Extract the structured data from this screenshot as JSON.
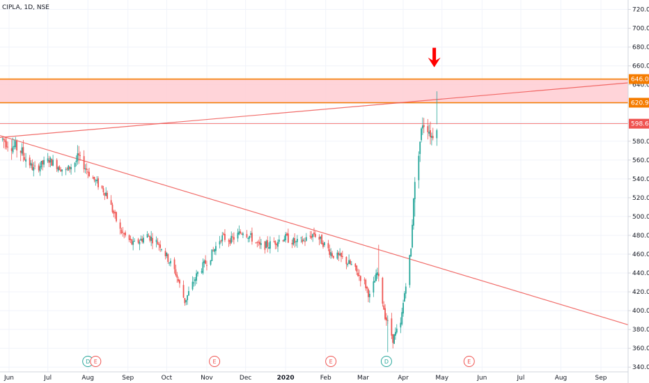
{
  "chart_data": {
    "type": "candlestick",
    "title": "CIPLA, 1D, NSE",
    "y_axis": {
      "range": [
        335,
        730
      ],
      "ticks": [
        340,
        360,
        380,
        400,
        420,
        440,
        460,
        480,
        500,
        520,
        540,
        560,
        580,
        600,
        620,
        640,
        660,
        680,
        700,
        720
      ],
      "tick_labels": [
        "340.00",
        "360.00",
        "380.00",
        "400.00",
        "420.00",
        "440.00",
        "460.00",
        "480.00",
        "500.00",
        "520.00",
        "540.00",
        "560.00",
        "580.00",
        "600.00",
        "620.00",
        "640.00",
        "660.00",
        "680.00",
        "700.00",
        "720.00"
      ]
    },
    "x_axis": {
      "labels": [
        "Jun",
        "Jul",
        "Aug",
        "Sep",
        "Oct",
        "Nov",
        "Dec",
        "2020",
        "Feb",
        "Mar",
        "Apr",
        "May",
        "Jun",
        "Jul",
        "Aug",
        "Sep"
      ],
      "label_dates": [
        "2019-06-01",
        "2019-07-01",
        "2019-08-01",
        "2019-09-01",
        "2019-10-01",
        "2019-11-01",
        "2019-12-01",
        "2020-01-01",
        "2020-02-01",
        "2020-03-01",
        "2020-04-01",
        "2020-05-01",
        "2020-06-01",
        "2020-07-01",
        "2020-08-01",
        "2020-09-01"
      ],
      "range_start": "2019-05-25",
      "range_end": "2020-09-22"
    },
    "price_levels": [
      {
        "value": 646.0,
        "label": "646.00",
        "color": "#f57c00"
      },
      {
        "value": 620.9,
        "label": "620.90",
        "color": "#f57c00"
      },
      {
        "value": 598.6,
        "label": "598.60",
        "color": "#ef5350"
      }
    ],
    "zone": {
      "from": 620.9,
      "to": 646.0,
      "color": "#ffcdd2"
    },
    "trendlines": [
      {
        "from": {
          "date": "2019-05-25",
          "value": 586
        },
        "to": {
          "date": "2020-09-22",
          "value": 385
        },
        "color": "#ef5350"
      },
      {
        "from": {
          "date": "2019-05-25",
          "value": 584
        },
        "to": {
          "date": "2020-09-22",
          "value": 642
        },
        "color": "#ef5350"
      }
    ],
    "arrow": {
      "date": "2020-04-25",
      "value": 660,
      "color": "#ff0000"
    },
    "events": [
      {
        "date": "2019-08-01",
        "label": "D",
        "color": "#26a69a"
      },
      {
        "date": "2019-08-07",
        "label": "E",
        "color": "#ef5350"
      },
      {
        "date": "2019-11-07",
        "label": "E",
        "color": "#ef5350"
      },
      {
        "date": "2020-02-05",
        "label": "E",
        "color": "#ef5350"
      },
      {
        "date": "2020-03-19",
        "label": "D",
        "color": "#26a69a"
      },
      {
        "date": "2020-05-22",
        "label": "E",
        "color": "#ef5350"
      }
    ],
    "candles_keypoints": [
      [
        "2019-05-27",
        582
      ],
      [
        "2019-06-10",
        570
      ],
      [
        "2019-06-20",
        550
      ],
      [
        "2019-07-02",
        560
      ],
      [
        "2019-07-15",
        548
      ],
      [
        "2019-07-25",
        562
      ],
      [
        "2019-08-05",
        540
      ],
      [
        "2019-08-15",
        525
      ],
      [
        "2019-08-26",
        485
      ],
      [
        "2019-09-05",
        470
      ],
      [
        "2019-09-16",
        480
      ],
      [
        "2019-09-26",
        470
      ],
      [
        "2019-10-08",
        440
      ],
      [
        "2019-10-15",
        410
      ],
      [
        "2019-10-25",
        440
      ],
      [
        "2019-11-04",
        458
      ],
      [
        "2019-11-12",
        478
      ],
      [
        "2019-11-20",
        475
      ],
      [
        "2019-11-29",
        485
      ],
      [
        "2019-12-05",
        478
      ],
      [
        "2019-12-12",
        468
      ],
      [
        "2019-12-19",
        470
      ],
      [
        "2019-12-31",
        478
      ],
      [
        "2020-01-09",
        472
      ],
      [
        "2020-01-16",
        475
      ],
      [
        "2020-01-23",
        482
      ],
      [
        "2020-01-30",
        472
      ],
      [
        "2020-02-06",
        460
      ],
      [
        "2020-02-14",
        455
      ],
      [
        "2020-02-21",
        448
      ],
      [
        "2020-03-02",
        430
      ],
      [
        "2020-03-06",
        415
      ],
      [
        "2020-03-12",
        440
      ],
      [
        "2020-03-18",
        395
      ],
      [
        "2020-03-24",
        370
      ],
      [
        "2020-03-30",
        385
      ],
      [
        "2020-04-03",
        430
      ],
      [
        "2020-04-07",
        465
      ],
      [
        "2020-04-09",
        522
      ],
      [
        "2020-04-13",
        570
      ],
      [
        "2020-04-16",
        600
      ],
      [
        "2020-04-20",
        595
      ],
      [
        "2020-04-23",
        585
      ],
      [
        "2020-04-27",
        598.6
      ]
    ]
  }
}
